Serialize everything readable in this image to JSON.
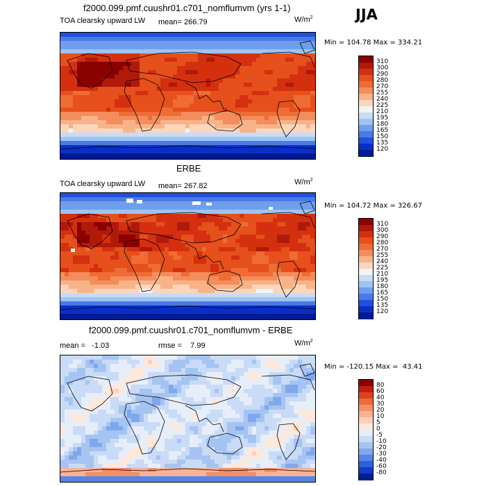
{
  "season": "JJA",
  "units_prefix": "W/m",
  "units_exp": "2",
  "panels": [
    {
      "title": "f2000.099.pmf.cuushr01.c701_nomflumvm (yrs 1-1)",
      "variable": "TOA clearsky upward LW",
      "mean_label": "mean= 266.79",
      "minmax": "Min = 104.78 Max = 334.21",
      "kind": "model",
      "colorbar": {
        "labels": [
          "310",
          "300",
          "290",
          "280",
          "270",
          "255",
          "240",
          "225",
          "210",
          "195",
          "180",
          "165",
          "150",
          "135",
          "120"
        ],
        "colors": [
          "#8b0000",
          "#b01a0a",
          "#d4300f",
          "#e5501c",
          "#ef6c35",
          "#f48d5c",
          "#f8b38a",
          "#fbd6bd",
          "#f3f3f3",
          "#c6dcf7",
          "#9fc3f3",
          "#6f9fec",
          "#4a7ae6",
          "#2050dc",
          "#0a2fc8",
          "#001a8f"
        ]
      }
    },
    {
      "title": "ERBE",
      "variable": "TOA clearsky upward LW",
      "mean_label": "mean= 267.82",
      "minmax": "Min = 104.72 Max = 326.67",
      "kind": "obs",
      "colorbar": {
        "labels": [
          "310",
          "300",
          "290",
          "280",
          "270",
          "255",
          "240",
          "225",
          "210",
          "195",
          "180",
          "165",
          "150",
          "135",
          "120"
        ],
        "colors": [
          "#8b0000",
          "#b01a0a",
          "#d4300f",
          "#e5501c",
          "#ef6c35",
          "#f48d5c",
          "#f8b38a",
          "#fbd6bd",
          "#f3f3f3",
          "#c6dcf7",
          "#9fc3f3",
          "#6f9fec",
          "#4a7ae6",
          "#2050dc",
          "#0a2fc8",
          "#001a8f"
        ]
      }
    },
    {
      "title": "f2000.099.pmf.cuushr01.c701_nomflumvm - ERBE",
      "mean_label": "mean =   -1.03",
      "rmse_label": "rmse =    7.99",
      "minmax": "Min = -120.15 Max =  43.41",
      "kind": "diff",
      "colorbar": {
        "labels": [
          "80",
          "60",
          "40",
          "30",
          "20",
          "10",
          "5",
          "0",
          "-5",
          "-10",
          "-20",
          "-30",
          "-40",
          "-60",
          "-80"
        ],
        "colors": [
          "#8b0000",
          "#c0200c",
          "#e0401a",
          "#ee6a3a",
          "#f49068",
          "#f8b296",
          "#fbd0bd",
          "#fde8dc",
          "#e6eefa",
          "#c9dbf6",
          "#a6c4f1",
          "#7fa7ec",
          "#5585e6",
          "#2e5fdc",
          "#103cc8",
          "#00208f"
        ]
      }
    }
  ]
}
